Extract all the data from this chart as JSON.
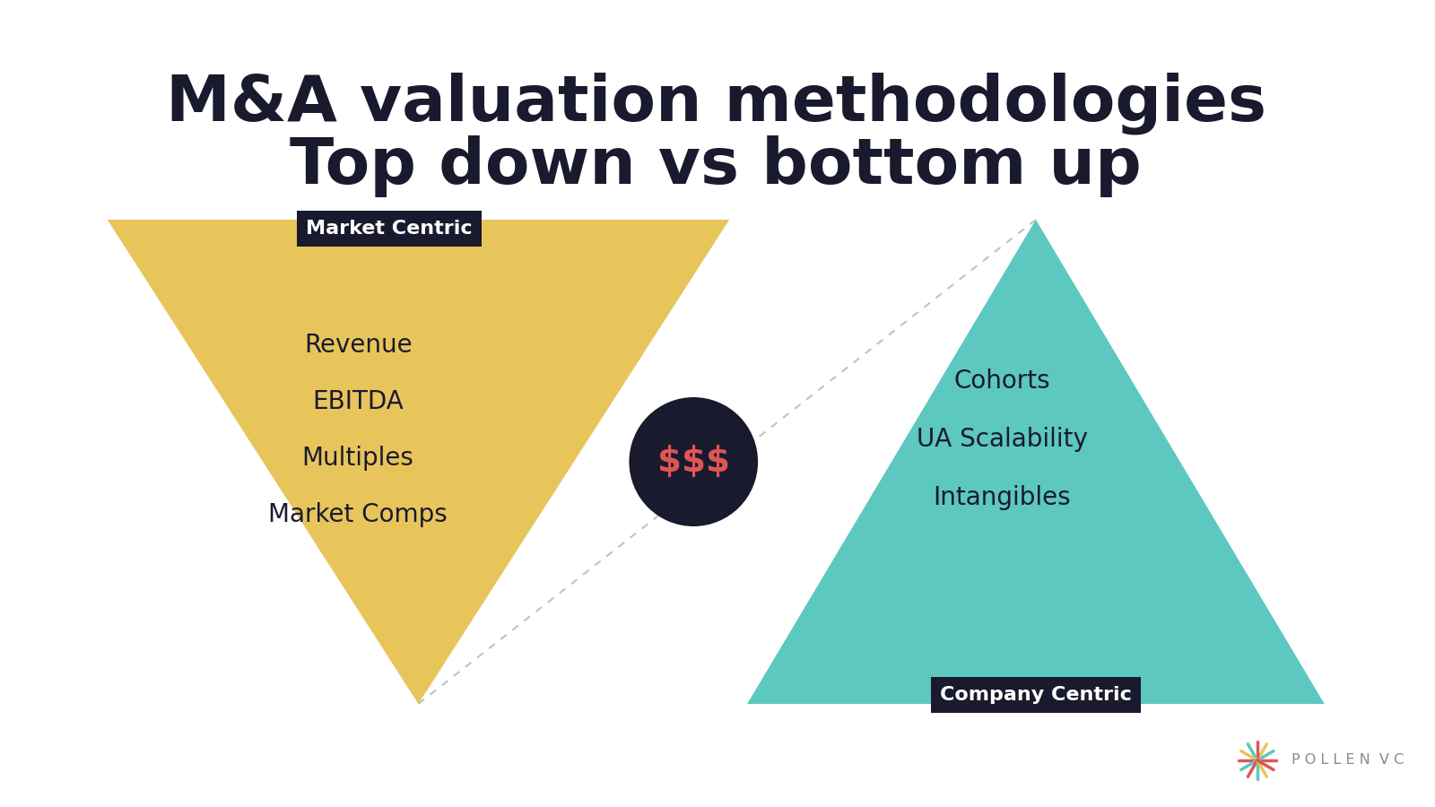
{
  "title_line1": "M&A valuation methodologies",
  "title_line2": "Top down vs bottom up",
  "title_color": "#1a1a2e",
  "title_fontsize": 52,
  "background_color": "#ffffff",
  "left_triangle_color": "#e8c55a",
  "right_triangle_color": "#5cc8bf",
  "label_box_color": "#1a1a2e",
  "label_text_color": "#ffffff",
  "label_left": "Market Centric",
  "label_right": "Company Centric",
  "left_items": [
    "Revenue",
    "EBITDA",
    "Multiples",
    "Market Comps"
  ],
  "right_items": [
    "Cohorts",
    "UA Scalability",
    "Intangibles"
  ],
  "center_circle_color": "#1a1a2e",
  "center_text": "$$$",
  "center_text_color": "#e05555",
  "item_fontsize": 20,
  "label_fontsize": 16,
  "divider_line_color": "#bbbbbb",
  "logo_text": "P O L L E N  V C",
  "logo_text_color": "#888888",
  "spoke_colors": [
    "#e05555",
    "#5cc8bf",
    "#e8c55a",
    "#e05555",
    "#5cc8bf",
    "#e8c55a",
    "#e05555",
    "#5cc8bf",
    "#e05555",
    "#5cc8bf",
    "#e8c55a",
    "#e05555"
  ]
}
